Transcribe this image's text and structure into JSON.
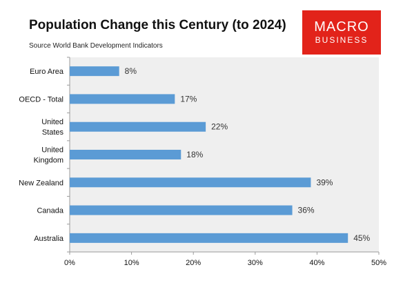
{
  "header": {
    "title": "Population Change this Century (to 2024)",
    "subtitle": "Source World Bank Development Indicators"
  },
  "logo": {
    "line1": "MACRO",
    "line2": "BUSINESS",
    "color": "#e2231a"
  },
  "chart_data": {
    "type": "bar",
    "orientation": "horizontal",
    "title": "Population Change this Century (to 2024)",
    "subtitle": "Source World Bank Development Indicators",
    "categories": [
      [
        "Euro Area"
      ],
      [
        "OECD - Total"
      ],
      [
        "United",
        "States"
      ],
      [
        "United",
        "Kingdom"
      ],
      [
        "New Zealand"
      ],
      [
        "Canada"
      ],
      [
        "Australia"
      ]
    ],
    "values": [
      8,
      17,
      22,
      18,
      39,
      36,
      45
    ],
    "value_labels": [
      "8%",
      "17%",
      "22%",
      "18%",
      "39%",
      "36%",
      "45%"
    ],
    "xlim": [
      0,
      50
    ],
    "x_ticks": [
      0,
      10,
      20,
      30,
      40,
      50
    ],
    "x_tick_labels": [
      "0%",
      "10%",
      "20%",
      "30%",
      "40%",
      "50%"
    ],
    "xlabel": "",
    "ylabel": "",
    "grid": false,
    "bar_color": "#5b9bd5",
    "plot_background": "#efefef"
  }
}
